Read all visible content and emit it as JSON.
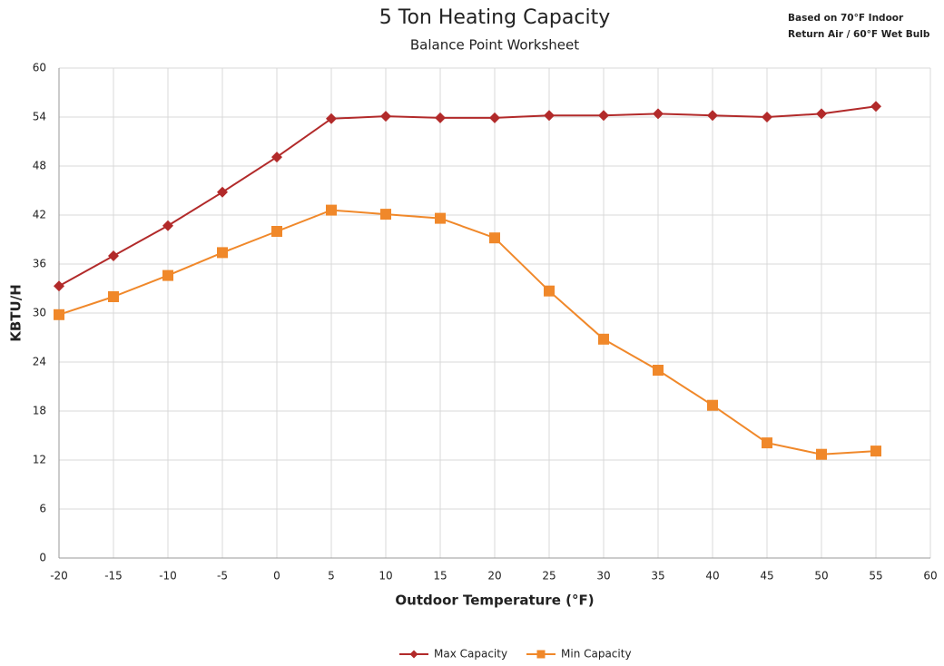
{
  "chart_data": {
    "type": "line",
    "title": "5 Ton Heating Capacity",
    "subtitle": "Balance Point Worksheet",
    "annotation": [
      "Based on 70°F Indoor",
      "Return Air / 60°F Wet Bulb"
    ],
    "x_label": "Outdoor Temperature (°F)",
    "y_label": "KBTU/H",
    "x": [
      -20,
      -15,
      -10,
      -5,
      0,
      5,
      10,
      15,
      20,
      25,
      30,
      35,
      40,
      45,
      50,
      55
    ],
    "series": [
      {
        "name": "Max Capacity",
        "color": "#b22a2a",
        "marker": "diamond",
        "values": [
          33.3,
          37.0,
          40.7,
          44.8,
          49.1,
          53.8,
          54.1,
          53.9,
          53.9,
          54.2,
          54.2,
          54.4,
          54.2,
          54.0,
          54.4,
          55.3
        ]
      },
      {
        "name": "Min Capacity",
        "color": "#f0882a",
        "marker": "square",
        "values": [
          29.8,
          32.0,
          34.6,
          37.4,
          40.0,
          42.6,
          42.1,
          41.6,
          39.2,
          32.7,
          26.8,
          23.0,
          18.7,
          14.1,
          12.7,
          13.1
        ]
      }
    ],
    "xlim": [
      -20,
      60
    ],
    "xticks": [
      -20,
      -15,
      -10,
      -5,
      0,
      5,
      10,
      15,
      20,
      25,
      30,
      35,
      40,
      45,
      50,
      55,
      60
    ],
    "ylim": [
      0,
      60
    ],
    "yticks": [
      0,
      6,
      12,
      18,
      24,
      30,
      36,
      42,
      48,
      54,
      60
    ],
    "grid": true,
    "legend": "bottom"
  }
}
